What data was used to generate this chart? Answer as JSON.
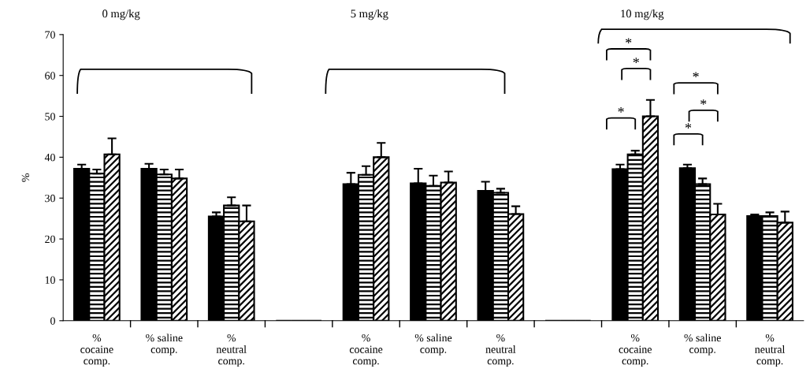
{
  "chart_data": {
    "type": "bar",
    "ylabel": "%",
    "categories": [
      "%\ncocaine\ncomp.",
      "% saline\ncomp.",
      "%\nneutral\ncomp.",
      null,
      "%\ncocaine\ncomp.",
      "% saline\ncomp.",
      "%\nneutral\ncomp.",
      null,
      "%\ncocaine\ncomp.",
      "% saline\ncomp.",
      "%\nneutral\ncomp."
    ],
    "series": [
      {
        "color": "#000000",
        "values": [
          37.2,
          37.2,
          25.5,
          0,
          33.4,
          33.6,
          31.8,
          0,
          37.1,
          37.3,
          25.6
        ],
        "errors": [
          [
            37.2,
            38.2
          ],
          [
            37.2,
            38.4
          ],
          [
            25.5,
            26.5
          ],
          null,
          [
            33.4,
            36.2
          ],
          [
            33.6,
            37.2
          ],
          [
            31.8,
            34.0
          ],
          null,
          [
            37.1,
            38.2
          ],
          [
            37.3,
            38.2
          ],
          [
            25.6,
            26.0
          ]
        ]
      },
      {
        "color": "#000000",
        "values": [
          36.0,
          35.8,
          28.2,
          0,
          35.7,
          33.0,
          31.3,
          0,
          40.7,
          33.4,
          25.6
        ],
        "errors": [
          [
            36.0,
            37.0
          ],
          [
            35.8,
            37.0
          ],
          [
            28.2,
            30.2
          ],
          null,
          [
            35.7,
            37.8
          ],
          [
            33.0,
            35.5
          ],
          [
            31.3,
            32.3
          ],
          null,
          [
            40.7,
            41.6
          ],
          [
            33.4,
            34.8
          ],
          [
            25.6,
            26.5
          ]
        ]
      },
      {
        "color": "#000000",
        "values": [
          40.7,
          34.8,
          24.3,
          0,
          40.0,
          33.8,
          26.1,
          0,
          50.0,
          26.0,
          24.0
        ],
        "errors": [
          [
            40.7,
            44.6
          ],
          [
            34.8,
            37.0
          ],
          [
            24.3,
            28.2
          ],
          null,
          [
            40.0,
            43.5
          ],
          [
            33.8,
            36.5
          ],
          [
            26.1,
            28.0
          ],
          null,
          [
            50.0,
            54.0
          ],
          [
            26.0,
            28.6
          ],
          [
            24.0,
            26.7
          ]
        ]
      }
    ],
    "ylim": [
      0,
      70
    ],
    "yticks": [
      0,
      10,
      20,
      30,
      40,
      50,
      60,
      70
    ],
    "grid": false,
    "annotations": [
      "0 mg/kg",
      "5 mg/kg",
      "10 mg/kg",
      "*",
      "*",
      "*",
      "*",
      "*",
      "*"
    ]
  }
}
